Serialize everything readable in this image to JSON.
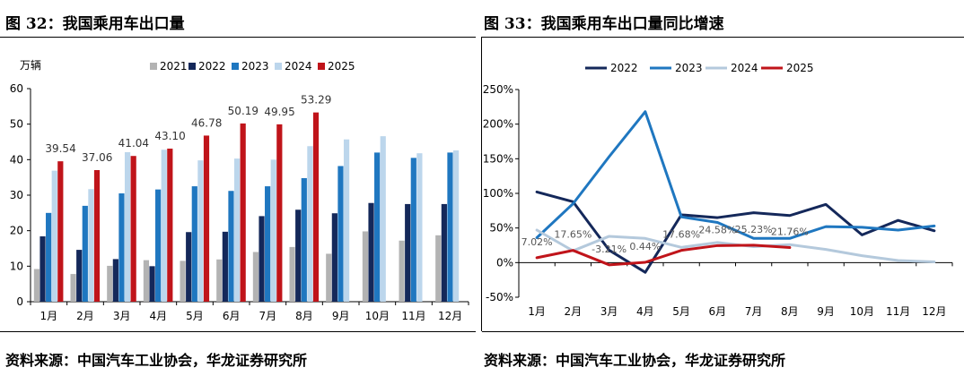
{
  "left": {
    "title": "图 32：我国乘用车出口量",
    "source": "资料来源：中国汽车工业协会，华龙证券研究所"
  },
  "right": {
    "title": "图 33：我国乘用车出口量同比增速",
    "source": "资料来源：中国汽车工业协会，华龙证券研究所"
  },
  "chart_data": [
    {
      "type": "bar",
      "title": "图 32：我国乘用车出口量",
      "unit_label": "万辆",
      "categories": [
        "1月",
        "2月",
        "3月",
        "4月",
        "5月",
        "6月",
        "7月",
        "8月",
        "9月",
        "10月",
        "11月",
        "12月"
      ],
      "ylim": [
        0,
        60
      ],
      "yticks": [
        0,
        10,
        20,
        30,
        40,
        50,
        60
      ],
      "grid": false,
      "legend_position": "top",
      "series": [
        {
          "name": "2021",
          "color": "#b3b3b3",
          "values": [
            9.2,
            7.8,
            10.1,
            11.7,
            11.5,
            11.9,
            14.0,
            15.4,
            13.5,
            19.8,
            17.2,
            18.7
          ]
        },
        {
          "name": "2022",
          "color": "#14285a",
          "values": [
            18.4,
            14.6,
            12.0,
            10.0,
            19.6,
            19.7,
            24.1,
            25.9,
            24.9,
            27.8,
            27.5,
            27.5
          ]
        },
        {
          "name": "2023",
          "color": "#1f77c0",
          "values": [
            25.0,
            27.0,
            30.5,
            31.6,
            32.5,
            31.2,
            32.5,
            34.8,
            38.2,
            42.0,
            40.5,
            42.0
          ]
        },
        {
          "name": "2024",
          "color": "#bcd6ec",
          "values": [
            36.9,
            31.7,
            42.1,
            42.8,
            39.8,
            40.3,
            40.0,
            43.8,
            45.7,
            46.6,
            41.8,
            42.6
          ]
        },
        {
          "name": "2025",
          "color": "#c0141a",
          "values": [
            39.54,
            37.06,
            41.04,
            43.1,
            46.78,
            50.19,
            49.95,
            53.29,
            null,
            null,
            null,
            null
          ]
        }
      ],
      "data_labels": {
        "series": "2025",
        "values": [
          "39.54",
          "37.06",
          "41.04",
          "43.10",
          "46.78",
          "50.19",
          "49.95",
          "53.29"
        ]
      }
    },
    {
      "type": "line",
      "title": "图 33：我国乘用车出口量同比增速",
      "categories": [
        "1月",
        "2月",
        "3月",
        "4月",
        "5月",
        "6月",
        "7月",
        "8月",
        "9月",
        "10月",
        "11月",
        "12月"
      ],
      "ylim": [
        -50,
        250
      ],
      "yticks": [
        "-50%",
        "0%",
        "50%",
        "100%",
        "150%",
        "200%",
        "250%"
      ],
      "ytick_values": [
        -50,
        0,
        50,
        100,
        150,
        200,
        250
      ],
      "grid": false,
      "legend_position": "top",
      "series": [
        {
          "name": "2022",
          "color": "#14285a",
          "values": [
            102,
            88,
            18,
            -14,
            69,
            65,
            72,
            68,
            84,
            40,
            61,
            46
          ]
        },
        {
          "name": "2023",
          "color": "#1f77c0",
          "values": [
            36,
            85,
            153,
            218,
            66,
            58,
            35,
            35,
            52,
            51,
            47,
            53
          ]
        },
        {
          "name": "2024",
          "color": "#b4c9dc",
          "values": [
            47,
            17,
            38,
            35,
            22,
            29,
            23,
            26,
            19,
            10,
            3,
            1
          ]
        },
        {
          "name": "2025",
          "color": "#c0141a",
          "values": [
            7.02,
            17.65,
            -3.21,
            0.44,
            17.68,
            24.58,
            25.23,
            21.76,
            null,
            null,
            null,
            null
          ]
        }
      ],
      "data_labels": {
        "series": "2025",
        "values": [
          "7.02%",
          "17.65%",
          "-3.21%",
          "0.44%",
          "17.68%",
          "24.58%",
          "25.23%",
          "21.76%"
        ]
      }
    }
  ]
}
